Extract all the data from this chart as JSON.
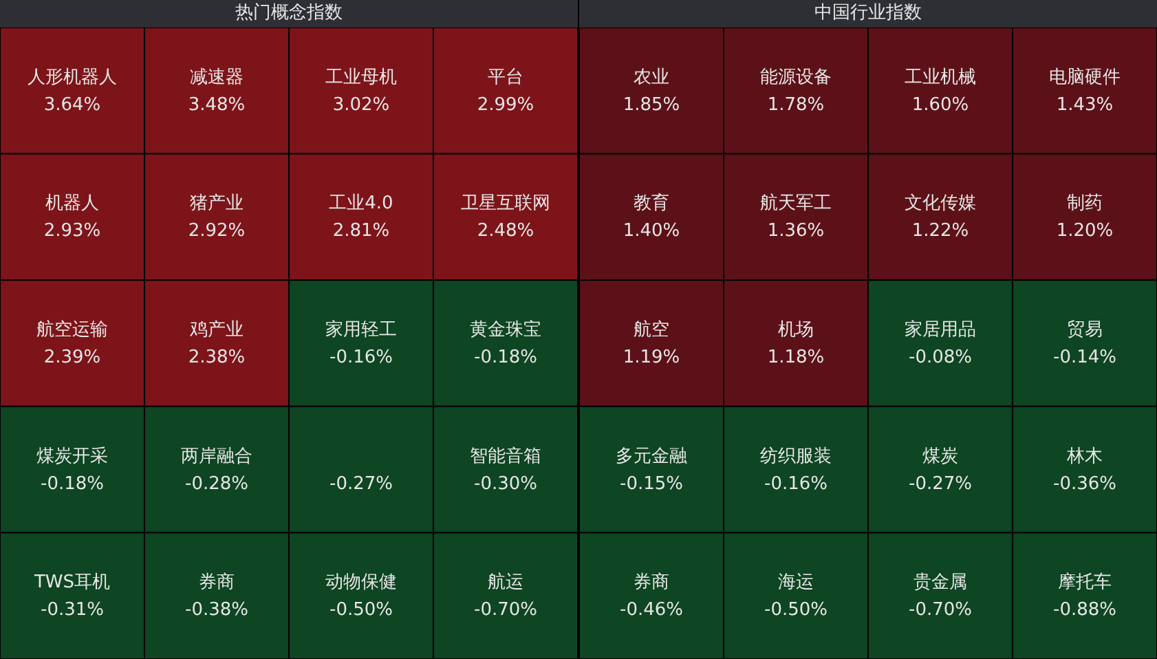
{
  "chart_data": [
    {
      "type": "other",
      "title": "热门概念指数",
      "categories": [
        "人形机器人",
        "减速器",
        "工业母机",
        "平台",
        "机器人",
        "猪产业",
        "工业4.0",
        "卫星互联网",
        "航空运输",
        "鸡产业",
        "家用轻工",
        "黄金珠宝",
        "煤炭开采",
        "两岸融合",
        null,
        "智能音箱",
        "TWS耳机",
        "券商",
        "动物保健",
        "航运"
      ],
      "values": [
        3.64,
        3.48,
        3.02,
        2.99,
        2.93,
        2.92,
        2.81,
        2.48,
        2.39,
        2.38,
        -0.16,
        -0.18,
        -0.18,
        -0.28,
        -0.27,
        -0.3,
        -0.31,
        -0.38,
        -0.5,
        -0.7
      ],
      "value_labels": [
        "3.64%",
        "3.48%",
        "3.02%",
        "2.99%",
        "2.93%",
        "2.92%",
        "2.81%",
        "2.48%",
        "2.39%",
        "2.38%",
        "-0.16%",
        "-0.18%",
        "-0.18%",
        "-0.28%",
        "-0.27%",
        "-0.30%",
        "-0.31%",
        "-0.38%",
        "-0.50%",
        "-0.70%"
      ],
      "colors": [
        "#7d1419",
        "#7d1419",
        "#7d1419",
        "#7d1419",
        "#7d1419",
        "#7d1419",
        "#7d1419",
        "#7d1419",
        "#7d1419",
        "#7d1419",
        "#0e4522",
        "#0e4522",
        "#0e4522",
        "#0e4522",
        "#0e4522",
        "#0e4522",
        "#0e4522",
        "#0e4522",
        "#0e4522",
        "#0e4522"
      ]
    },
    {
      "type": "other",
      "title": "中国行业指数",
      "categories": [
        "农业",
        "能源设备",
        "工业机械",
        "电脑硬件",
        "教育",
        "航天军工",
        "文化传媒",
        "制药",
        "航空",
        "机场",
        "家居用品",
        "贸易",
        "多元金融",
        "纺织服装",
        "煤炭",
        "林木",
        "券商",
        "海运",
        "贵金属",
        "摩托车"
      ],
      "values": [
        1.85,
        1.78,
        1.6,
        1.43,
        1.4,
        1.36,
        1.22,
        1.2,
        1.19,
        1.18,
        -0.08,
        -0.14,
        -0.15,
        -0.16,
        -0.27,
        -0.36,
        -0.46,
        -0.5,
        -0.7,
        -0.88
      ],
      "value_labels": [
        "1.85%",
        "1.78%",
        "1.60%",
        "1.43%",
        "1.40%",
        "1.36%",
        "1.22%",
        "1.20%",
        "1.19%",
        "1.18%",
        "-0.08%",
        "-0.14%",
        "-0.15%",
        "-0.16%",
        "-0.27%",
        "-0.36%",
        "-0.46%",
        "-0.50%",
        "-0.70%",
        "-0.88%"
      ],
      "colors": [
        "#5c1118",
        "#5c1118",
        "#5c1118",
        "#5c1118",
        "#5c1118",
        "#5c1118",
        "#5c1118",
        "#5c1118",
        "#5c1118",
        "#5c1118",
        "#0e4522",
        "#0e4522",
        "#0e4522",
        "#0e4522",
        "#0e4522",
        "#0e4522",
        "#0e4522",
        "#0e4522",
        "#0e4522",
        "#0e4522"
      ]
    }
  ]
}
